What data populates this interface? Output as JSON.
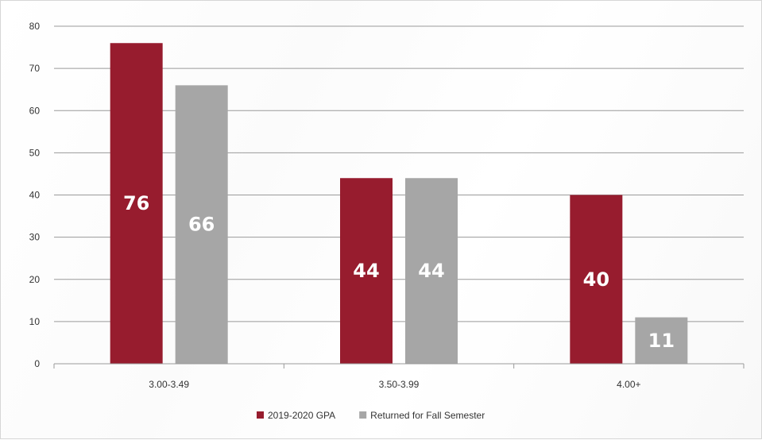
{
  "chart_data": {
    "type": "bar",
    "categories": [
      "3.00-3.49",
      "3.50-3.99",
      "4.00+"
    ],
    "series": [
      {
        "name": "2019-2020 GPA",
        "values": [
          76,
          44,
          40
        ],
        "color": "#971c2e"
      },
      {
        "name": "Returned for Fall Semester",
        "values": [
          66,
          44,
          11
        ],
        "color": "#a6a6a6"
      }
    ],
    "ylim": [
      0,
      80
    ],
    "yticks": [
      0,
      10,
      20,
      30,
      40,
      50,
      60,
      70,
      80
    ],
    "grid": true,
    "legend_position": "bottom-center",
    "data_labels": true,
    "title": "",
    "xlabel": "",
    "ylabel": ""
  }
}
